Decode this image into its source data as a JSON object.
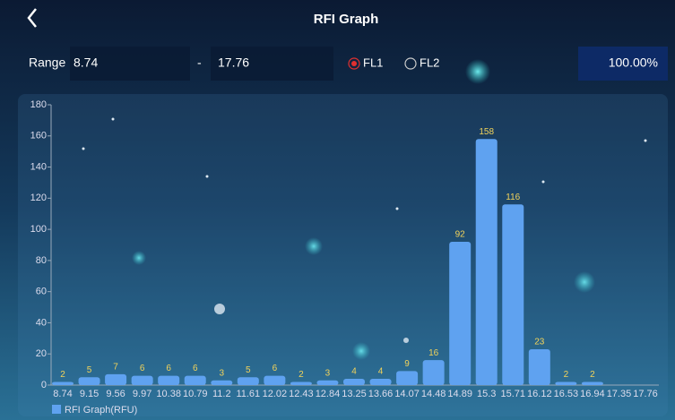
{
  "header": {
    "title": "RFI Graph"
  },
  "range": {
    "label": "Range",
    "min": "8.74",
    "separator": "-",
    "max": "17.76"
  },
  "options": [
    {
      "label": "FL1",
      "selected": true
    },
    {
      "label": "FL2",
      "selected": false
    }
  ],
  "percent": "100.00%",
  "chart_data": {
    "type": "bar",
    "categories": [
      "8.74",
      "9.15",
      "9.56",
      "9.97",
      "10.38",
      "10.79",
      "11.2",
      "11.61",
      "12.02",
      "12.43",
      "12.84",
      "13.25",
      "13.66",
      "14.07",
      "14.48",
      "14.89",
      "15.3",
      "15.71",
      "16.12",
      "16.53",
      "16.94",
      "17.35",
      "17.76"
    ],
    "series": [
      {
        "name": "RFI Graph(RFU)",
        "color": "#5fa2f0",
        "values": [
          2,
          5,
          7,
          6,
          6,
          6,
          3,
          5,
          6,
          2,
          3,
          4,
          4,
          9,
          16,
          92,
          158,
          116,
          23,
          2,
          2,
          null,
          null
        ]
      }
    ],
    "ylim": [
      0,
      180
    ],
    "yticks": [
      0,
      20,
      40,
      60,
      80,
      100,
      120,
      140,
      160,
      180
    ]
  }
}
